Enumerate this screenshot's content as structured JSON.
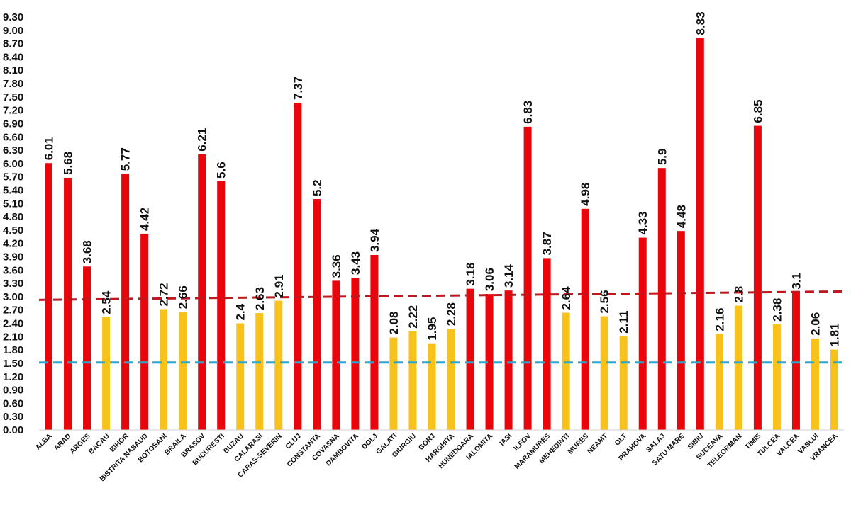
{
  "chart_data": {
    "type": "bar",
    "title": "",
    "xlabel": "",
    "ylabel": "",
    "ylim": [
      0,
      9.3
    ],
    "grid": false,
    "y_ticks": [
      "0.00",
      "0.30",
      "0.60",
      "0.90",
      "1.20",
      "1.50",
      "1.80",
      "2.10",
      "2.40",
      "2.70",
      "3.00",
      "3.30",
      "3.60",
      "3.90",
      "4.20",
      "4.50",
      "4.80",
      "5.10",
      "5.40",
      "5.70",
      "6.00",
      "6.30",
      "6.60",
      "6.90",
      "7.20",
      "7.50",
      "7.80",
      "8.10",
      "8.40",
      "8.70",
      "9.00",
      "9.30"
    ],
    "categories": [
      "ALBA",
      "ARAD",
      "ARGES",
      "BACAU",
      "BIHOR",
      "BISTRITA NASAUD",
      "BOTOSANI",
      "BRAILA",
      "BRASOV",
      "BUCURESTI",
      "BUZAU",
      "CALARASI",
      "CARAS-SEVERIN",
      "CLUJ",
      "CONSTANTA",
      "COVASNA",
      "DAMBOVITA",
      "DOLJ",
      "GALATI",
      "GIURGIU",
      "GORJ",
      "HARGHITA",
      "HUNEDOARA",
      "IALOMITA",
      "IASI",
      "ILFOV",
      "MARAMURES",
      "MEHEDINTI",
      "MURES",
      "NEAMT",
      "OLT",
      "PRAHOVA",
      "SALAJ",
      "SATU MARE",
      "SIBIU",
      "SUCEAVA",
      "TELEORMAN",
      "TIMIS",
      "TULCEA",
      "VALCEA",
      "VASLUI",
      "VRANCEA"
    ],
    "values": [
      6.01,
      5.68,
      3.68,
      2.54,
      5.77,
      4.42,
      2.72,
      2.66,
      6.21,
      5.6,
      2.4,
      2.63,
      2.91,
      7.37,
      5.2,
      3.36,
      3.43,
      3.94,
      2.08,
      2.22,
      1.95,
      2.28,
      3.18,
      3.06,
      3.14,
      6.83,
      3.87,
      2.64,
      4.98,
      2.56,
      2.11,
      4.33,
      5.9,
      4.48,
      8.83,
      2.16,
      2.8,
      6.85,
      2.38,
      3.1,
      2.06,
      1.81
    ],
    "value_labels": [
      "6.01",
      "5.68",
      "3.68",
      "2.54",
      "5.77",
      "4.42",
      "2.72",
      "2.66",
      "6.21",
      "5.6",
      "2.4",
      "2.63",
      "2.91",
      "7.37",
      "5.2",
      "3.36",
      "3.43",
      "3.94",
      "2.08",
      "2.22",
      "1.95",
      "2.28",
      "3.18",
      "3.06",
      "3.14",
      "6.83",
      "3.87",
      "2.64",
      "4.98",
      "2.56",
      "2.11",
      "4.33",
      "5.9",
      "4.48",
      "8.83",
      "2.16",
      "2.8",
      "6.85",
      "2.38",
      "3.1",
      "2.06",
      "1.81"
    ],
    "bar_colors": {
      "above": "#e8060c",
      "below": "#f7c21b"
    },
    "reference_lines": [
      {
        "name": "red-dashed-line",
        "color": "#c0161c",
        "y_start": 2.93,
        "y_end": 3.12
      },
      {
        "name": "blue-dashed-line",
        "color": "#2aa7cf",
        "y_start": 1.52,
        "y_end": 1.52
      }
    ]
  }
}
